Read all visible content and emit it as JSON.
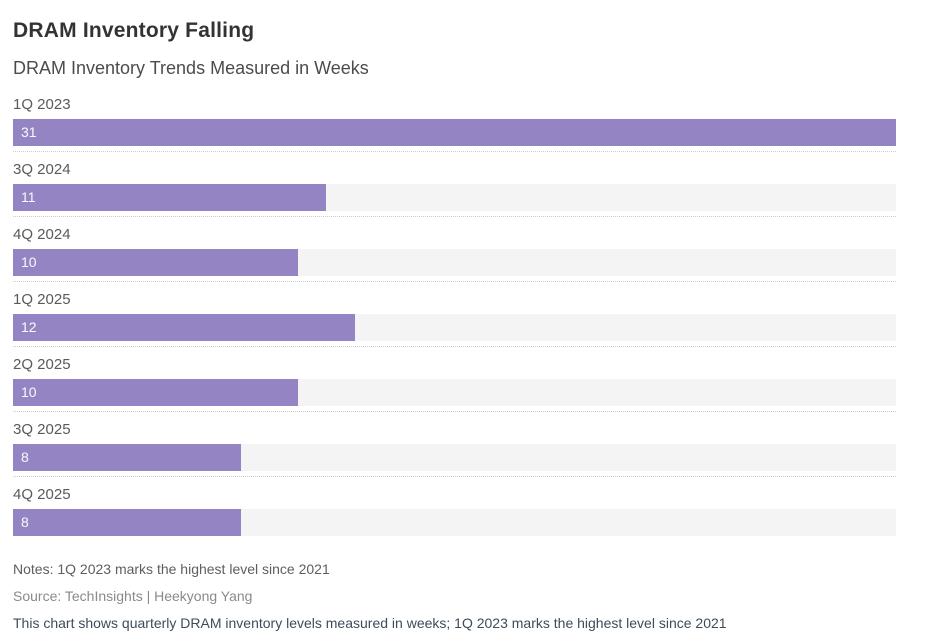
{
  "chart_data": {
    "type": "bar",
    "orientation": "horizontal",
    "title": "DRAM Inventory Falling",
    "subtitle": "DRAM Inventory Trends Measured in Weeks",
    "categories": [
      "1Q 2023",
      "3Q 2024",
      "4Q 2024",
      "1Q 2025",
      "2Q 2025",
      "3Q 2025",
      "4Q 2025"
    ],
    "values": [
      31,
      11,
      10,
      12,
      10,
      8,
      8
    ],
    "unit": "weeks",
    "xlim": [
      0,
      31
    ],
    "grid": false,
    "legend": false,
    "value_labels": "inside-bar-left",
    "notes": "Notes: 1Q 2023 marks the highest level since 2021",
    "source": "Source: TechInsights | Heekyong Yang",
    "caption": "This chart shows quarterly DRAM inventory levels measured in weeks; 1Q 2023 marks the highest level since 2021",
    "colors": {
      "bar": "#9584c4",
      "bar_track": "#f4f4f4",
      "divider": "#cccccc",
      "title": "#333333",
      "subtitle": "#4c4c4c",
      "category_label": "#5a5a5a",
      "value_label": "#ffffff",
      "notes": "#5e5e5e",
      "source": "#8a8a8a",
      "caption": "#3e4c59"
    }
  }
}
